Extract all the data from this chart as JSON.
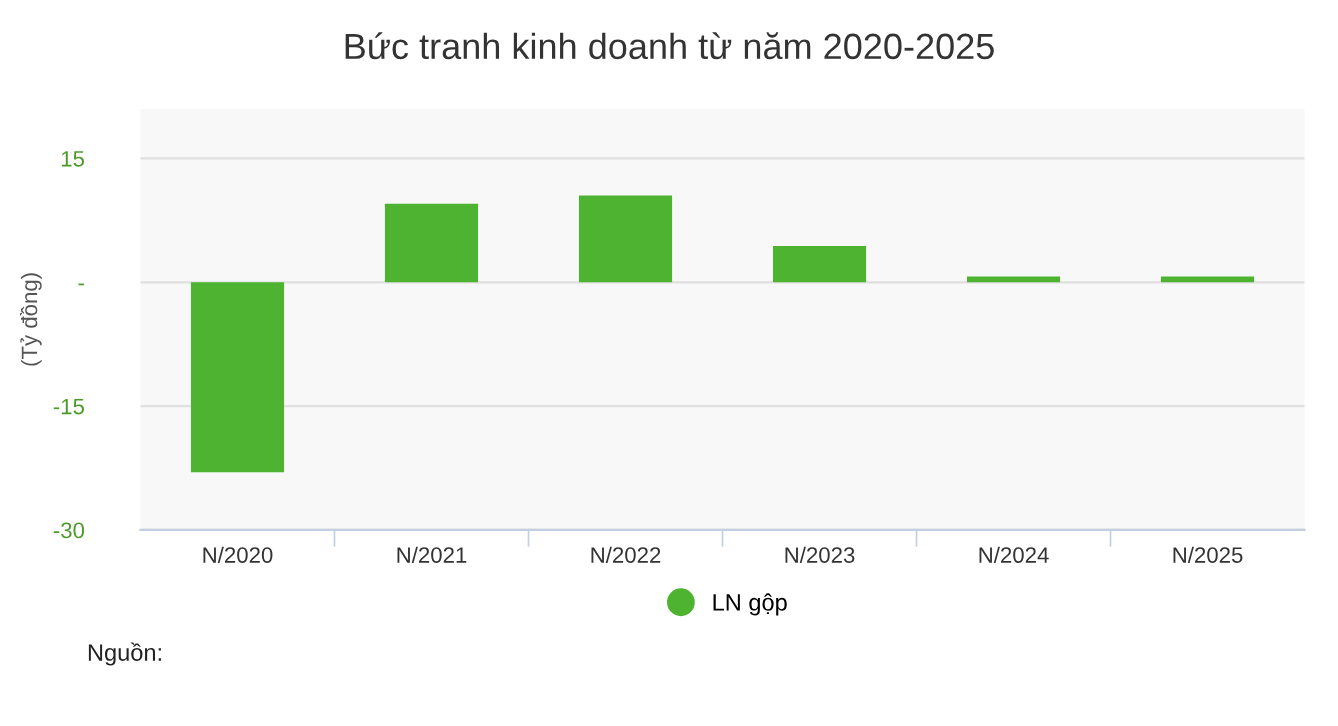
{
  "chart_data": {
    "type": "bar",
    "title": "Bức tranh kinh doanh từ năm 2020-2025",
    "ylabel": "(Tỷ đồng)",
    "categories": [
      "N/2020",
      "N/2021",
      "N/2022",
      "N/2023",
      "N/2024",
      "N/2025"
    ],
    "series": [
      {
        "name": "LN gộp",
        "color": "#4db330",
        "values": [
          -23,
          9.5,
          10.5,
          4.4,
          0.7,
          0.7
        ]
      }
    ],
    "ylim": [
      -30,
      21
    ],
    "yticks": [
      -30,
      -15,
      {
        "value": 0,
        "label": "-"
      },
      15
    ],
    "grid": "y",
    "legend": "bottom",
    "annotations": [
      "Nguồn:"
    ]
  }
}
